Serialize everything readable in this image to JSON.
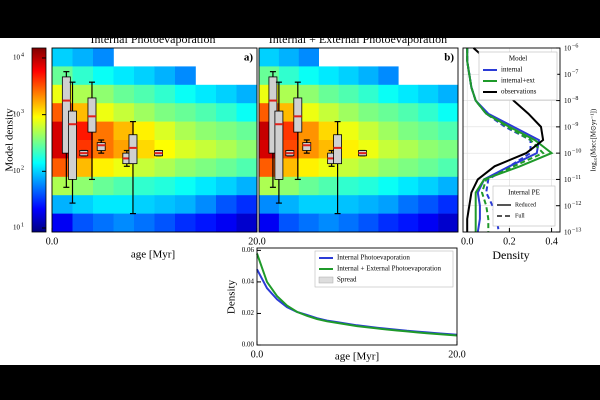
{
  "chart_data": [
    {
      "type": "heatmap",
      "title": "Internal Photoevaporation",
      "panel_label": "a)",
      "xlabel": "age [Myr]",
      "xlim": [
        0,
        20
      ],
      "ylim": [
        -13,
        -6
      ],
      "xticks": [
        {
          "value": 0,
          "label": "0.0"
        },
        {
          "value": 20,
          "label": "20.0"
        }
      ],
      "clabel": "Model density",
      "clim": [
        8.5,
        15000
      ],
      "cticks": [
        {
          "value": 10,
          "label": "10",
          "exp": "1"
        },
        {
          "value": 100,
          "label": "10",
          "exp": "2"
        },
        {
          "value": 1000,
          "label": "10",
          "exp": "3"
        },
        {
          "value": 10000,
          "label": "10",
          "exp": "4"
        }
      ],
      "xbins": [
        0,
        2,
        4,
        6,
        8,
        10,
        12,
        14,
        16,
        18,
        20
      ],
      "ybins": [
        -6,
        -6.7,
        -7.4,
        -8.1,
        -8.8,
        -9.5,
        -10.2,
        -10.9,
        -11.6,
        -12.3,
        -13
      ],
      "z": [
        [
          100,
          80,
          60,
          null,
          null,
          null,
          null,
          null,
          null,
          null
        ],
        [
          300,
          200,
          150,
          120,
          100,
          80,
          60,
          null,
          null,
          null
        ],
        [
          800,
          500,
          400,
          300,
          250,
          200,
          150,
          120,
          100,
          80
        ],
        [
          3000,
          1500,
          800,
          600,
          450,
          350,
          300,
          250,
          200,
          150
        ],
        [
          8000,
          5000,
          2500,
          1500,
          1000,
          700,
          500,
          400,
          350,
          300
        ],
        [
          8000,
          4000,
          2500,
          1800,
          1200,
          900,
          700,
          600,
          500,
          400
        ],
        [
          3000,
          1500,
          1000,
          800,
          600,
          500,
          400,
          350,
          300,
          250
        ],
        [
          500,
          400,
          300,
          250,
          200,
          180,
          150,
          120,
          100,
          80
        ],
        [
          80,
          100,
          120,
          120,
          100,
          90,
          80,
          60,
          40,
          30
        ],
        [
          20,
          40,
          50,
          60,
          50,
          40,
          30,
          25,
          20,
          15
        ]
      ],
      "boxes": [
        {
          "x": 1.4,
          "whislo": -11.3,
          "q1": -10.0,
          "med": -8.0,
          "q3": -7.1,
          "whishi": -6.9
        },
        {
          "x": 2.0,
          "whislo": -11.9,
          "q1": -11.0,
          "med": -8.9,
          "q3": -8.4,
          "whishi": -7.3
        },
        {
          "x": 3.1,
          "whislo": -10.1,
          "q1": -10.1,
          "med": -10.0,
          "q3": -9.9,
          "whishi": -9.9
        },
        {
          "x": 3.9,
          "whislo": -11.0,
          "q1": -9.2,
          "med": -8.6,
          "q3": -7.9,
          "whishi": -7.3
        },
        {
          "x": 4.8,
          "whislo": -10.0,
          "q1": -9.9,
          "med": -9.7,
          "q3": -9.6,
          "whishi": -9.5
        },
        {
          "x": 7.3,
          "whislo": -10.5,
          "q1": -10.4,
          "med": -10.2,
          "q3": -10.0,
          "whishi": -9.9
        },
        {
          "x": 7.9,
          "whislo": -12.3,
          "q1": -10.4,
          "med": -9.8,
          "q3": -9.3,
          "whishi": -8.8
        },
        {
          "x": 10.4,
          "whislo": -10.1,
          "q1": -10.1,
          "med": -10.0,
          "q3": -9.9,
          "whishi": -9.9
        }
      ]
    },
    {
      "type": "heatmap",
      "title": "Internal + External Photoevaporation",
      "panel_label": "b)",
      "xlim": [
        0,
        20
      ],
      "ylim": [
        -13,
        -6
      ],
      "clim": [
        8.5,
        15000
      ],
      "xbins": [
        0,
        2,
        4,
        6,
        8,
        10,
        12,
        14,
        16,
        18,
        20
      ],
      "ybins": [
        -6,
        -6.7,
        -7.4,
        -8.1,
        -8.8,
        -9.5,
        -10.2,
        -10.9,
        -11.6,
        -12.3,
        -13
      ],
      "z": [
        [
          100,
          80,
          60,
          null,
          null,
          null,
          null,
          null,
          null,
          null
        ],
        [
          300,
          200,
          150,
          120,
          100,
          80,
          60,
          null,
          null,
          null
        ],
        [
          800,
          500,
          400,
          300,
          250,
          200,
          150,
          120,
          100,
          80
        ],
        [
          3000,
          1500,
          800,
          600,
          450,
          350,
          300,
          250,
          200,
          150
        ],
        [
          9000,
          4000,
          2000,
          1200,
          800,
          600,
          450,
          350,
          300,
          250
        ],
        [
          8000,
          3500,
          2000,
          1500,
          1000,
          800,
          600,
          500,
          400,
          350
        ],
        [
          3000,
          1500,
          1000,
          800,
          600,
          500,
          400,
          350,
          300,
          250
        ],
        [
          500,
          400,
          300,
          250,
          200,
          180,
          150,
          120,
          100,
          80
        ],
        [
          60,
          80,
          100,
          100,
          90,
          80,
          70,
          50,
          40,
          30
        ],
        [
          20,
          40,
          50,
          60,
          50,
          40,
          30,
          25,
          20,
          15
        ]
      ],
      "boxes": [
        {
          "x": 1.4,
          "whislo": -11.3,
          "q1": -10.0,
          "med": -8.0,
          "q3": -7.1,
          "whishi": -6.9
        },
        {
          "x": 2.0,
          "whislo": -11.9,
          "q1": -11.0,
          "med": -8.9,
          "q3": -8.4,
          "whishi": -7.3
        },
        {
          "x": 3.1,
          "whislo": -10.1,
          "q1": -10.1,
          "med": -10.0,
          "q3": -9.9,
          "whishi": -9.9
        },
        {
          "x": 3.9,
          "whislo": -11.0,
          "q1": -9.2,
          "med": -8.6,
          "q3": -7.9,
          "whishi": -7.3
        },
        {
          "x": 4.8,
          "whislo": -10.0,
          "q1": -9.9,
          "med": -9.7,
          "q3": -9.6,
          "whishi": -9.5
        },
        {
          "x": 7.3,
          "whislo": -10.5,
          "q1": -10.4,
          "med": -10.2,
          "q3": -10.0,
          "whishi": -9.9
        },
        {
          "x": 7.9,
          "whislo": -12.3,
          "q1": -10.4,
          "med": -9.8,
          "q3": -9.3,
          "whishi": -8.8
        },
        {
          "x": 10.4,
          "whislo": -10.1,
          "q1": -10.1,
          "med": -10.0,
          "q3": -9.9,
          "whishi": -9.9
        }
      ]
    },
    {
      "type": "line",
      "orientation": "horizontal",
      "xlabel": "Density",
      "ylabel": "log₁₀(Macc[M⊙yr⁻¹])",
      "xlim": [
        -0.02,
        0.44
      ],
      "ylim": [
        -13,
        -6
      ],
      "grid": true,
      "xticks": [
        {
          "value": 0,
          "label": "0.0"
        },
        {
          "value": 0.2,
          "label": "0.2"
        },
        {
          "value": 0.4,
          "label": "0.4"
        }
      ],
      "yticks": [
        {
          "value": -6,
          "label": "10",
          "exp": "−6"
        },
        {
          "value": -7,
          "label": "10",
          "exp": "−7"
        },
        {
          "value": -8,
          "label": "10",
          "exp": "−8"
        },
        {
          "value": -9,
          "label": "10",
          "exp": "−9"
        },
        {
          "value": -10,
          "label": "10",
          "exp": "−10"
        },
        {
          "value": -11,
          "label": "10",
          "exp": "−11"
        },
        {
          "value": -12,
          "label": "10",
          "exp": "−12"
        },
        {
          "value": -13,
          "label": "10",
          "exp": "−13"
        }
      ],
      "y": [
        -6,
        -6.5,
        -7,
        -7.5,
        -8,
        -8.5,
        -9,
        -9.5,
        -10,
        -10.5,
        -11,
        -11.5,
        -12,
        -12.5,
        -13
      ],
      "legend": {
        "title": "Model",
        "entries": [
          {
            "name": "internal",
            "color": "#2b3bd6"
          },
          {
            "name": "internal+ext",
            "color": "#1f9a2a"
          },
          {
            "name": "observations",
            "color": "#000000"
          }
        ]
      },
      "style_legend": {
        "title": "Internal PE",
        "entries": [
          {
            "name": "Reduced",
            "dash": "solid"
          },
          {
            "name": "Full",
            "dash": "dashed"
          }
        ]
      },
      "series": [
        {
          "color": "#2b3bd6",
          "dash": "solid",
          "values": [
            0,
            0,
            0.01,
            0.02,
            0.04,
            0.1,
            0.22,
            0.34,
            0.33,
            0.2,
            0.08,
            0.05,
            0.06,
            0.06,
            0.05
          ]
        },
        {
          "color": "#1f9a2a",
          "dash": "solid",
          "values": [
            0,
            0,
            0.01,
            0.02,
            0.04,
            0.09,
            0.2,
            0.32,
            0.4,
            0.25,
            0.08,
            0.04,
            0.04,
            0.04,
            0.04
          ]
        },
        {
          "color": "#2b3bd6",
          "dash": "dashed",
          "values": [
            0,
            0,
            0.01,
            0.02,
            0.04,
            0.09,
            0.18,
            0.3,
            0.3,
            0.2,
            0.1,
            0.09,
            0.12,
            0.14,
            0.15
          ]
        },
        {
          "color": "#1f9a2a",
          "dash": "dashed",
          "values": [
            0,
            0,
            0.01,
            0.02,
            0.04,
            0.09,
            0.19,
            0.3,
            0.36,
            0.22,
            0.09,
            0.07,
            0.09,
            0.1,
            0.1
          ]
        },
        {
          "color": "#000000",
          "dash": "solid",
          "values": [
            0.03,
            0.1,
            0.15,
            0.19,
            0.22,
            0.29,
            0.35,
            0.36,
            0.28,
            0.13,
            0.05,
            0.02,
            0.01,
            0,
            0
          ]
        }
      ]
    },
    {
      "type": "line",
      "xlabel": "age [Myr]",
      "ylabel": "Density",
      "xlim": [
        0,
        20
      ],
      "ylim": [
        0,
        0.0615
      ],
      "xticks": [
        {
          "value": 0,
          "label": "0.0"
        },
        {
          "value": 20,
          "label": "20.0"
        }
      ],
      "yticks": [
        {
          "value": 0,
          "label": "0.00"
        },
        {
          "value": 0.02,
          "label": "0.02"
        },
        {
          "value": 0.04,
          "label": "0.04"
        },
        {
          "value": 0.06,
          "label": "0.06"
        }
      ],
      "legend": {
        "entries": [
          {
            "name": "Internal Photoevaporation",
            "color": "#2b3bd6"
          },
          {
            "name": "Internal + External Photoevaporation",
            "color": "#1f9a2a"
          },
          {
            "name": "Spread",
            "color": "#dddddd",
            "kind": "patch"
          }
        ]
      },
      "x": [
        0,
        1,
        2,
        3,
        4,
        5,
        6,
        7,
        8,
        9,
        10,
        11,
        12,
        13,
        14,
        15,
        16,
        17,
        18,
        19,
        20
      ],
      "series": [
        {
          "color": "#2b3bd6",
          "dash": "solid",
          "values": [
            0.048,
            0.036,
            0.029,
            0.024,
            0.021,
            0.019,
            0.017,
            0.0155,
            0.0145,
            0.0135,
            0.0125,
            0.0117,
            0.011,
            0.0103,
            0.0097,
            0.009,
            0.0085,
            0.008,
            0.0075,
            0.007,
            0.0065
          ]
        },
        {
          "color": "#1f9a2a",
          "dash": "solid",
          "values": [
            0.058,
            0.04,
            0.031,
            0.025,
            0.021,
            0.0185,
            0.0165,
            0.015,
            0.014,
            0.013,
            0.012,
            0.0112,
            0.0105,
            0.0098,
            0.0092,
            0.0086,
            0.008,
            0.0075,
            0.007,
            0.0065,
            0.006
          ]
        }
      ]
    }
  ]
}
